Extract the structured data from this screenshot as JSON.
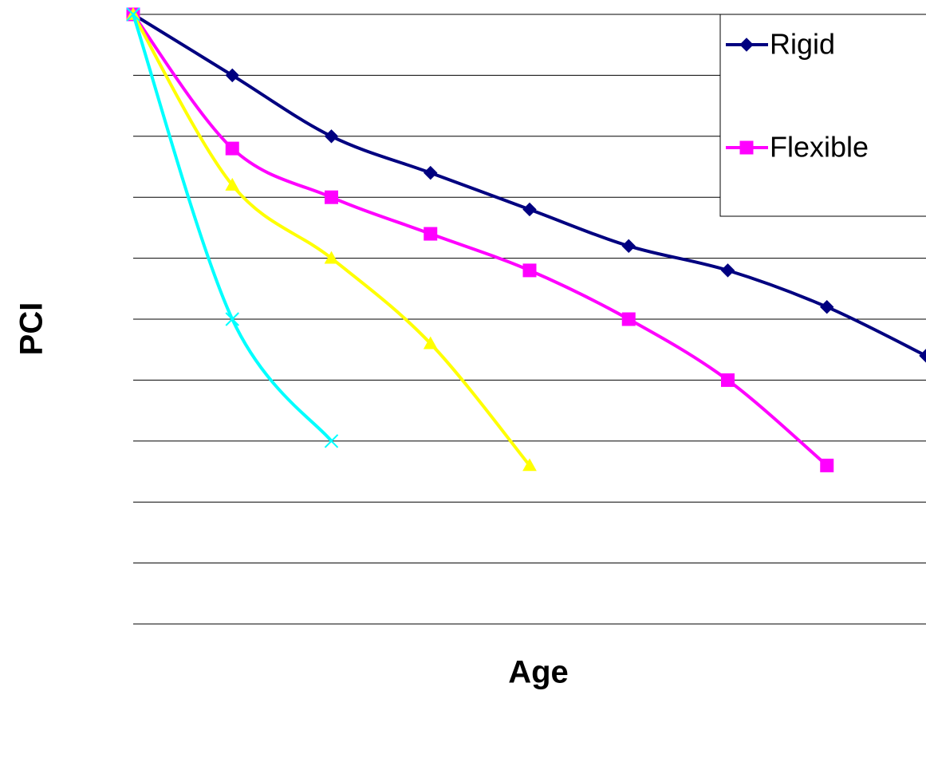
{
  "chart_data": {
    "type": "line",
    "smooth": true,
    "grid": true,
    "legend": "upper right",
    "y_label": "PCI",
    "x_label": "Age",
    "categories": [
      null,
      null,
      null,
      null,
      null,
      null,
      null,
      null,
      null
    ],
    "ylim": [
      0,
      100
    ],
    "yticks": [
      0,
      10,
      20,
      30,
      40,
      50,
      60,
      70,
      80,
      90,
      100
    ],
    "series": [
      {
        "name": "Rigid",
        "color": "#000080",
        "marker": "diamond",
        "values": [
          100,
          90,
          80,
          74,
          68,
          62,
          58,
          52,
          44
        ]
      },
      {
        "name": "Flexible",
        "color": "#ff00ff",
        "marker": "square",
        "values": [
          100,
          78,
          70,
          64,
          58,
          50,
          40,
          26,
          null
        ]
      },
      {
        "color": "#ffff00",
        "marker": "triangle",
        "values": [
          100,
          72,
          60,
          46,
          26,
          null,
          null,
          null,
          null
        ]
      },
      {
        "color": "#00ffff",
        "marker": "x",
        "values": [
          100,
          50,
          30,
          null,
          null,
          null,
          null,
          null,
          null
        ]
      }
    ]
  }
}
